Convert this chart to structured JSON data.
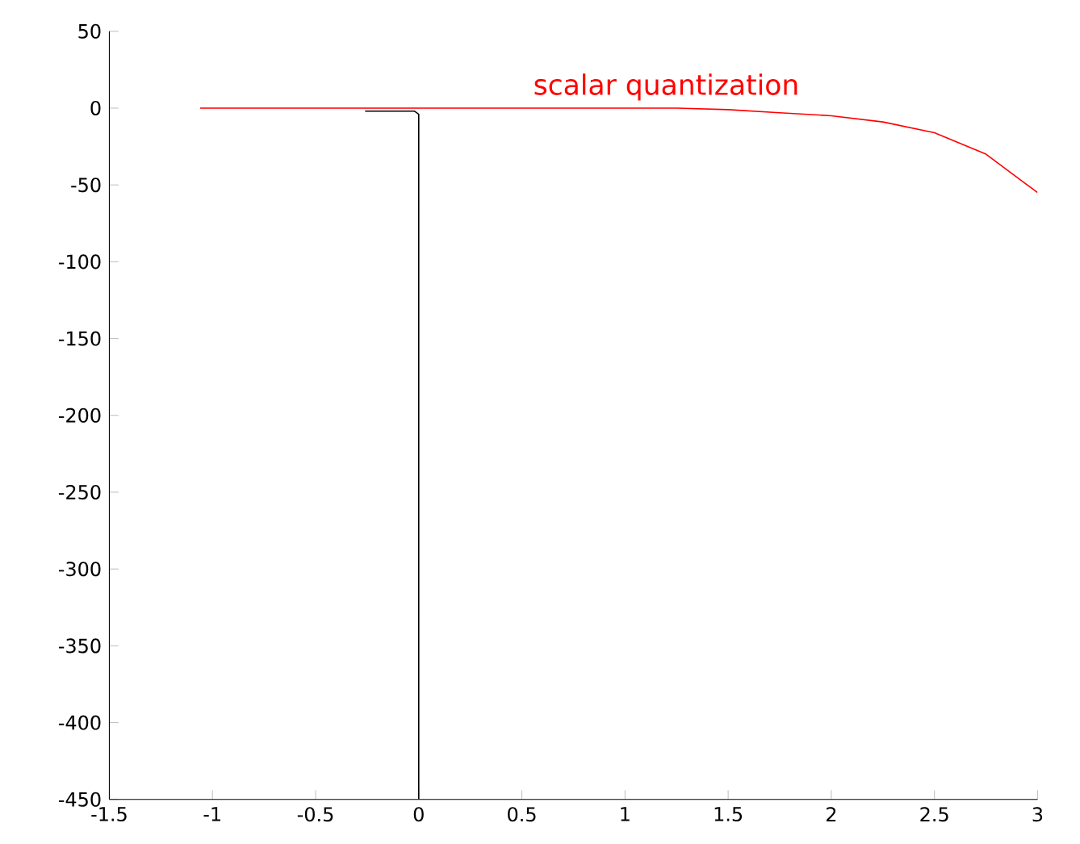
{
  "chart_data": {
    "type": "line",
    "xlim": [
      -1.5,
      3
    ],
    "ylim": [
      -450,
      50
    ],
    "xticks": [
      -1.5,
      -1,
      -0.5,
      0,
      0.5,
      1,
      1.5,
      2,
      2.5,
      3
    ],
    "yticks": [
      -450,
      -400,
      -350,
      -300,
      -250,
      -200,
      -150,
      -100,
      -50,
      0,
      50
    ],
    "series": [
      {
        "name": "scalar quantization",
        "color": "#ff0000",
        "x": [
          -1.06,
          0,
          1,
          1.25,
          1.5,
          1.75,
          2,
          2.25,
          2.5,
          2.75,
          3
        ],
        "values": [
          0,
          0,
          0,
          0,
          -1,
          -3,
          -5,
          -9,
          -16,
          -30,
          -55
        ]
      },
      {
        "color": "#000000",
        "x": [
          -0.26,
          -0.02,
          0,
          0
        ],
        "values": [
          -2,
          -2,
          -4,
          -450
        ]
      }
    ]
  }
}
